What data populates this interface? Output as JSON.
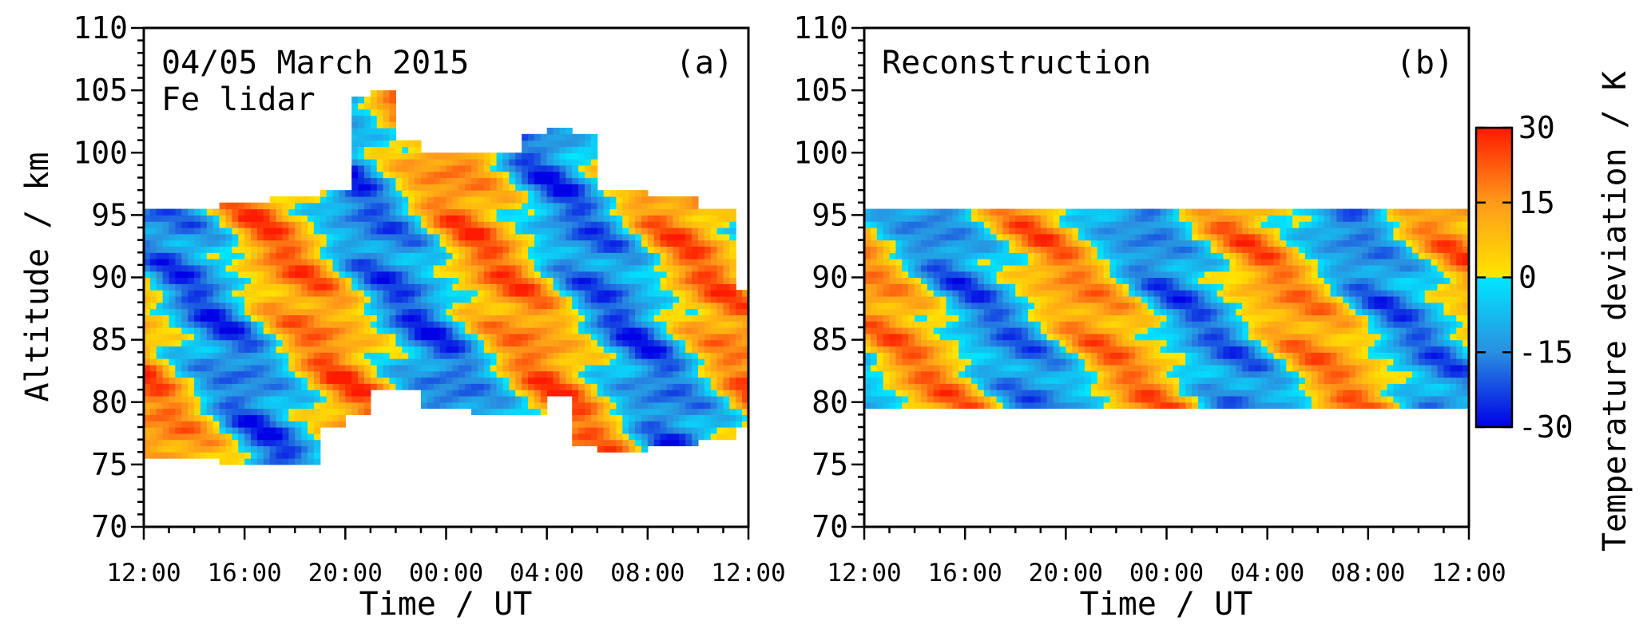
{
  "chart_data": [
    {
      "type": "heatmap",
      "panel": "(a)",
      "annotation_lines": [
        "04/05 March 2015",
        "Fe lidar"
      ],
      "xlabel": "Time / UT",
      "ylabel": "Altitude / km",
      "x_ticks": [
        "12:00",
        "16:00",
        "20:00",
        "00:00",
        "04:00",
        "08:00",
        "12:00"
      ],
      "y_ticks": [
        "70",
        "75",
        "80",
        "85",
        "90",
        "95",
        "100",
        "105",
        "110"
      ],
      "xlim_hours": [
        0,
        24
      ],
      "ylim": [
        70,
        110
      ],
      "z_label": "Temperature deviation / K",
      "zlim": [
        -30,
        30
      ],
      "coverage": [
        {
          "t": 0,
          "bottom": 75.5,
          "top": 95.5
        },
        {
          "t": 3,
          "bottom": 75.0,
          "top": 96.0
        },
        {
          "t": 5,
          "bottom": 75.0,
          "top": 96.5
        },
        {
          "t": 7,
          "bottom": 78.0,
          "top": 97.0
        },
        {
          "t": 8,
          "bottom": 79.0,
          "top": 97.0
        },
        {
          "t": 8.2,
          "bottom": 79.0,
          "top": 104.5
        },
        {
          "t": 9,
          "bottom": 81.0,
          "top": 105.0
        },
        {
          "t": 10,
          "bottom": 81.0,
          "top": 101.0
        },
        {
          "t": 11,
          "bottom": 79.5,
          "top": 100.0
        },
        {
          "t": 13,
          "bottom": 79.0,
          "top": 100.0
        },
        {
          "t": 15,
          "bottom": 79.0,
          "top": 101.5
        },
        {
          "t": 16,
          "bottom": 80.5,
          "top": 102.0
        },
        {
          "t": 17,
          "bottom": 76.5,
          "top": 101.5
        },
        {
          "t": 18,
          "bottom": 76.0,
          "top": 97.0
        },
        {
          "t": 20,
          "bottom": 76.5,
          "top": 96.5
        },
        {
          "t": 22,
          "bottom": 77.0,
          "top": 95.5
        },
        {
          "t": 23.5,
          "bottom": 78.0,
          "top": 89.0
        }
      ],
      "wave_phase_lines": [
        {
          "altitude": 75,
          "time": 1.5
        },
        {
          "altitude": 95,
          "time": -3.5
        }
      ],
      "wave_period_hours": 8.2,
      "amplitude_k": 20
    },
    {
      "type": "heatmap",
      "panel": "(b)",
      "annotation_lines": [
        "Reconstruction"
      ],
      "xlabel": "Time / UT",
      "ylabel": "",
      "x_ticks": [
        "12:00",
        "16:00",
        "20:00",
        "00:00",
        "04:00",
        "08:00",
        "12:00"
      ],
      "y_ticks": [
        "70",
        "75",
        "80",
        "85",
        "90",
        "95",
        "100",
        "105",
        "110"
      ],
      "xlim_hours": [
        0,
        24
      ],
      "ylim": [
        70,
        110
      ],
      "data_altitude_range": [
        79.5,
        95.5
      ],
      "z_label": "Temperature deviation / K",
      "zlim": [
        -30,
        30
      ],
      "wave_phase_lines": [
        {
          "altitude": 80,
          "time": 3.2
        },
        {
          "altitude": 95,
          "time": -1.8
        }
      ],
      "wave_period_hours": 8.2,
      "amplitude_k": 18
    }
  ],
  "colorbar": {
    "label": "Temperature deviation / K",
    "ticks": [
      "30",
      "15",
      "0",
      "-15",
      "-30"
    ],
    "range": [
      -30,
      30
    ],
    "colors": {
      "min": "#0000e6",
      "neg_mid": "#2a8fe0",
      "neg_zero": "#00e6ff",
      "pos_zero": "#ffe600",
      "pos_mid": "#ff9a1a",
      "max": "#ff1a00"
    }
  }
}
